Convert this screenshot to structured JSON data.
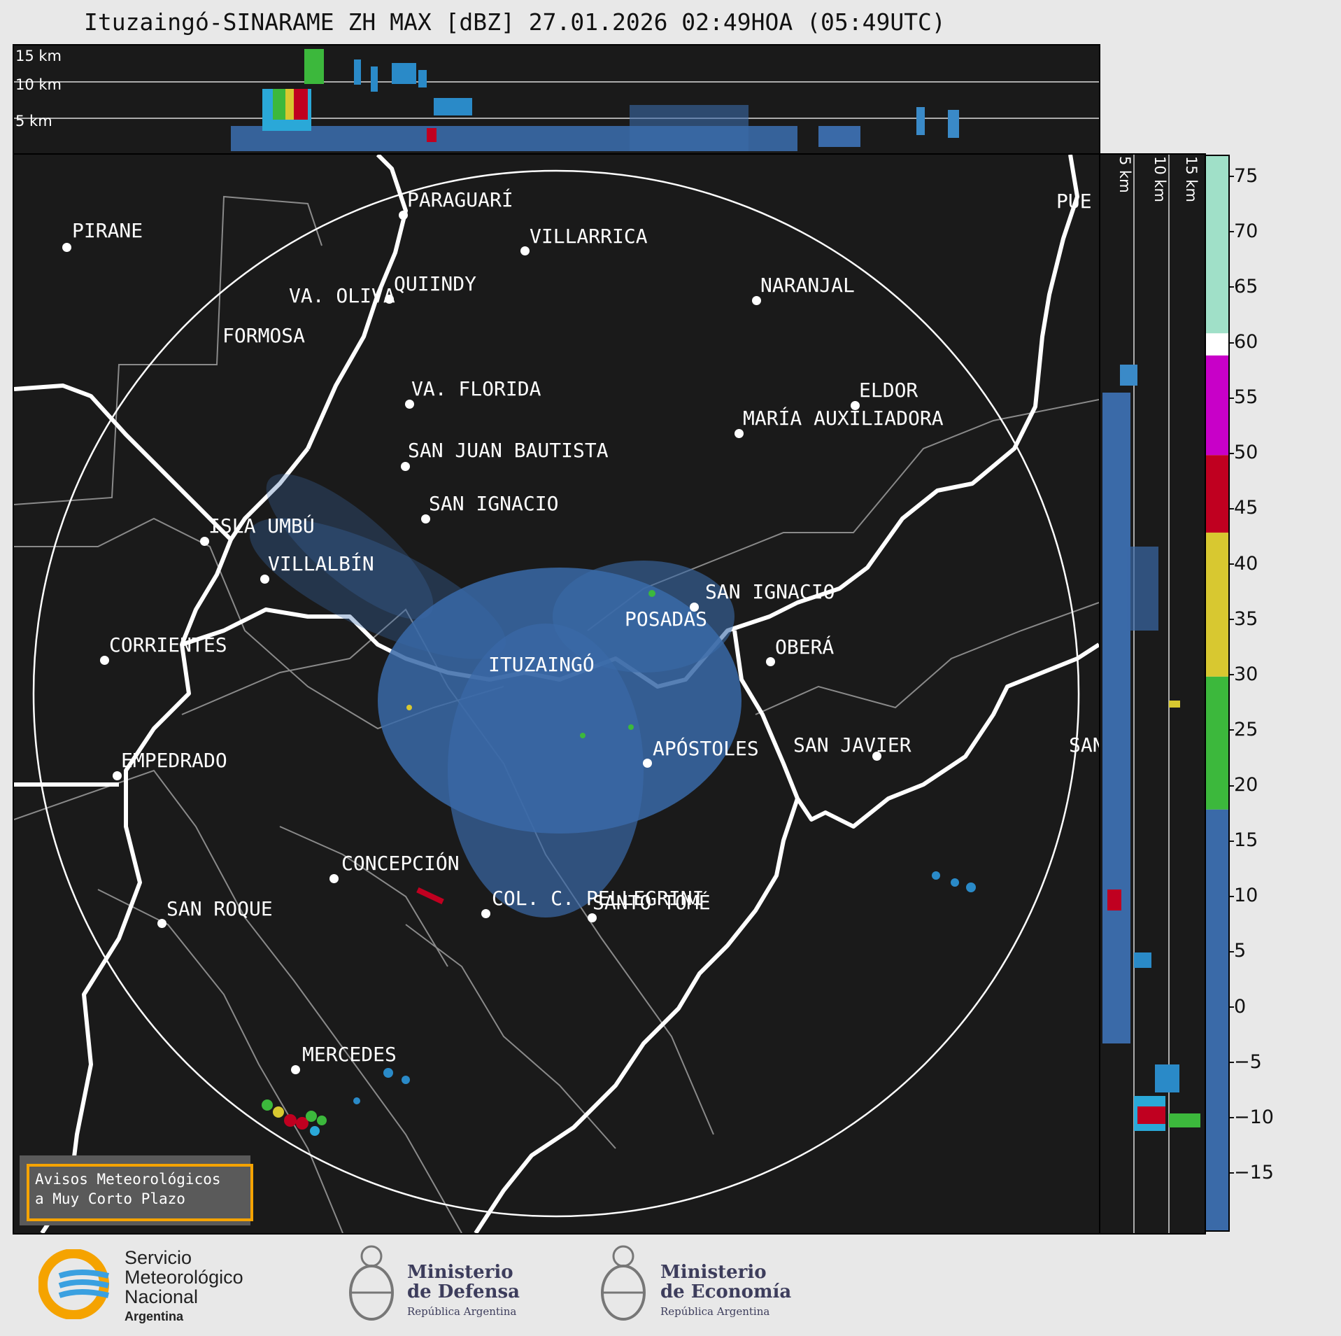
{
  "title": "Ituzaingó-SINARAME ZH MAX [dBZ] 27.01.2026 02:49HOA (05:49UTC)",
  "altitude_labels": [
    "15 km",
    "10 km",
    "5 km"
  ],
  "cities": [
    {
      "name": "PARAGUARÍ"
    },
    {
      "name": "VILLARRICA"
    },
    {
      "name": "PIRANE"
    },
    {
      "name": "QUIINDY"
    },
    {
      "name": "VA. OLIVA"
    },
    {
      "name": "NARANJAL"
    },
    {
      "name": "FORMOSA"
    },
    {
      "name": "VA. FLORIDA"
    },
    {
      "name": "ELDOR"
    },
    {
      "name": "MARÍA AUXILIADORA"
    },
    {
      "name": "SAN JUAN BAUTISTA"
    },
    {
      "name": "SAN IGNACIO"
    },
    {
      "name": "ISLA UMBÚ"
    },
    {
      "name": "VILLALBÍN"
    },
    {
      "name": "SAN IGNACIO"
    },
    {
      "name": "POSADAS"
    },
    {
      "name": "CORRIENTES"
    },
    {
      "name": "OBERÁ"
    },
    {
      "name": "ITUZAINGÓ"
    },
    {
      "name": "EMPEDRADO"
    },
    {
      "name": "APÓSTOLES"
    },
    {
      "name": "SAN JAVIER"
    },
    {
      "name": "SAN"
    },
    {
      "name": "CONCEPCIÓN"
    },
    {
      "name": "COL. C. PELLEGRINI"
    },
    {
      "name": "SANTO TOMÉ"
    },
    {
      "name": "SAN ROQUE"
    },
    {
      "name": "MERCEDES"
    },
    {
      "name": "PUE"
    }
  ],
  "colorbar": {
    "unit": "dBZ",
    "min": -20,
    "max": 77,
    "ticks": [
      "75",
      "70",
      "65",
      "60",
      "55",
      "50",
      "45",
      "40",
      "35",
      "30",
      "25",
      "20",
      "15",
      "10",
      "5",
      "0",
      "−5",
      "−10",
      "−15"
    ],
    "bands": [
      {
        "from": -20,
        "to": 18,
        "color": "#3a6aa8"
      },
      {
        "from": 18,
        "to": 30,
        "color": "#3cb83c"
      },
      {
        "from": 30,
        "to": 43,
        "color": "#d8c830"
      },
      {
        "from": 43,
        "to": 50,
        "color": "#c00020"
      },
      {
        "from": 50,
        "to": 59,
        "color": "#c800c8"
      },
      {
        "from": 59,
        "to": 61,
        "color": "#ffffff"
      },
      {
        "from": 61,
        "to": 77,
        "color": "#a0e0c8"
      }
    ]
  },
  "warning_box": {
    "line1": "Avisos Meteorológicos",
    "line2": "a Muy Corto Plazo"
  },
  "logos": {
    "smn": {
      "line1": "Servicio",
      "line2": "Meteorológico",
      "line3": "Nacional",
      "line4": "Argentina"
    },
    "defensa": {
      "line1": "Ministerio",
      "line2": "de Defensa",
      "line3": "República Argentina"
    },
    "economia": {
      "line1": "Ministerio",
      "line2": "de Economía",
      "line3": "República Argentina"
    }
  }
}
